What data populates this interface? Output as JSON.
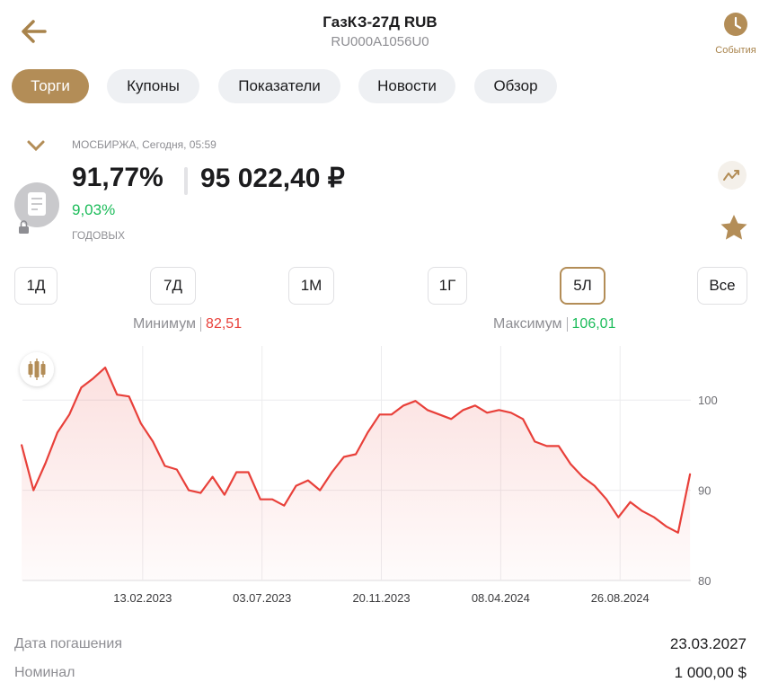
{
  "header": {
    "title": "ГазКЗ-27Д RUB",
    "subtitle": "RU000A1056U0",
    "events": "События"
  },
  "tabs": [
    {
      "label": "Торги",
      "active": true
    },
    {
      "label": "Купоны",
      "active": false
    },
    {
      "label": "Показатели",
      "active": false
    },
    {
      "label": "Новости",
      "active": false
    },
    {
      "label": "Обзор",
      "active": false
    }
  ],
  "quote": {
    "source": "МОСБИРЖА, Сегодня, 05:59",
    "price_percent": "91,77%",
    "price": "95 022,40 ₽",
    "yield": "9,03%",
    "yield_label": "ГОДОВЫХ"
  },
  "periods": [
    {
      "label": "1Д",
      "active": false
    },
    {
      "label": "7Д",
      "active": false
    },
    {
      "label": "1М",
      "active": false
    },
    {
      "label": "1Г",
      "active": false
    },
    {
      "label": "5Л",
      "active": true
    },
    {
      "label": "Все",
      "active": false
    }
  ],
  "range": {
    "min_label": "Минимум",
    "min": "82,51",
    "max_label": "Максимум",
    "max": "106,01"
  },
  "chart_data": {
    "type": "line",
    "color": "#e8403a",
    "grid": true,
    "x": [
      "2022-09-24",
      "2022-10-08",
      "2022-10-22",
      "2022-11-05",
      "2022-11-19",
      "2022-12-03",
      "2022-12-17",
      "2022-12-31",
      "2023-01-14",
      "2023-01-28",
      "2023-02-11",
      "2023-02-25",
      "2023-03-11",
      "2023-03-25",
      "2023-04-08",
      "2023-04-22",
      "2023-05-06",
      "2023-05-20",
      "2023-06-03",
      "2023-06-17",
      "2023-07-01",
      "2023-07-15",
      "2023-07-29",
      "2023-08-12",
      "2023-08-26",
      "2023-09-09",
      "2023-09-23",
      "2023-10-07",
      "2023-10-21",
      "2023-11-04",
      "2023-11-18",
      "2023-12-02",
      "2023-12-16",
      "2023-12-30",
      "2024-01-13",
      "2024-01-27",
      "2024-02-10",
      "2024-02-24",
      "2024-03-09",
      "2024-03-23",
      "2024-04-06",
      "2024-04-20",
      "2024-05-04",
      "2024-05-18",
      "2024-06-01",
      "2024-06-15",
      "2024-06-29",
      "2024-07-13",
      "2024-07-27",
      "2024-08-10",
      "2024-08-24",
      "2024-09-07",
      "2024-09-21",
      "2024-10-05",
      "2024-10-19",
      "2024-11-02",
      "2024-11-16"
    ],
    "values": [
      95.0,
      90.0,
      93.0,
      96.4,
      98.4,
      101.4,
      102.4,
      103.6,
      100.6,
      100.4,
      97.4,
      95.4,
      92.7,
      92.3,
      90.0,
      89.7,
      91.5,
      89.5,
      92.0,
      92.0,
      89.0,
      89.0,
      88.3,
      90.5,
      91.1,
      90.0,
      92.0,
      93.7,
      94.0,
      96.4,
      98.4,
      98.4,
      99.4,
      99.9,
      98.9,
      98.4,
      97.9,
      98.9,
      99.4,
      98.6,
      98.9,
      98.6,
      97.9,
      95.4,
      94.9,
      94.9,
      92.9,
      91.5,
      90.5,
      89.0,
      87.0,
      88.7,
      87.7,
      87.0,
      86.0,
      85.3,
      91.77
    ],
    "xlim": [
      "2022-09-25",
      "2024-11-17"
    ],
    "xticks": [
      {
        "value": "2023-02-13",
        "label": "13.02.2023"
      },
      {
        "value": "2023-07-03",
        "label": "03.07.2023"
      },
      {
        "value": "2023-11-20",
        "label": "20.11.2023"
      },
      {
        "value": "2024-04-08",
        "label": "08.04.2024"
      },
      {
        "value": "2024-08-26",
        "label": "26.08.2024"
      }
    ],
    "ylim": [
      80,
      106
    ],
    "yticks": [
      80,
      90,
      100
    ]
  },
  "details": [
    {
      "label": "Дата погашения",
      "value": "23.03.2027"
    },
    {
      "label": "Номинал",
      "value": "1 000,00 $"
    }
  ]
}
